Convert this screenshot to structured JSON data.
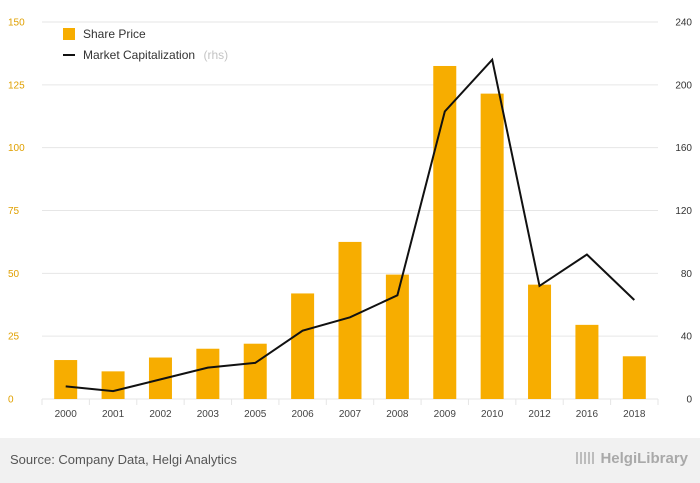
{
  "chart_data": {
    "type": "bar",
    "categories": [
      "2000",
      "2001",
      "2002",
      "2003",
      "2005",
      "2006",
      "2007",
      "2008",
      "2009",
      "2010",
      "2012",
      "2016",
      "2018"
    ],
    "series": [
      {
        "name": "Share Price",
        "type": "bar",
        "axis": "left",
        "values": [
          15.5,
          11,
          16.5,
          20,
          22,
          42,
          62.5,
          49.5,
          132.5,
          121.5,
          45.5,
          29.5,
          17
        ]
      },
      {
        "name": "Market Capitalization",
        "name_suffix": "(rhs)",
        "type": "line",
        "axis": "right",
        "values": [
          8,
          5,
          12.5,
          20,
          23,
          43.5,
          52,
          66,
          183,
          216,
          72,
          92,
          63
        ]
      }
    ],
    "y_left": {
      "ticks": [
        0,
        25,
        50,
        75,
        100,
        125,
        150
      ],
      "range": [
        0,
        150
      ]
    },
    "y_right": {
      "ticks": [
        0,
        40,
        80,
        120,
        160,
        200,
        240
      ],
      "range": [
        0,
        240
      ]
    },
    "legend": {
      "position": "top-left"
    },
    "grid": true,
    "colors": {
      "bar": "#f7ad00",
      "line": "#111111",
      "grid": "#e6e6e6",
      "left_axis_text": "#e0a000"
    }
  },
  "footer": {
    "source": "Source: Company Data, Helgi Analytics",
    "brand": "HelgiLibrary"
  }
}
